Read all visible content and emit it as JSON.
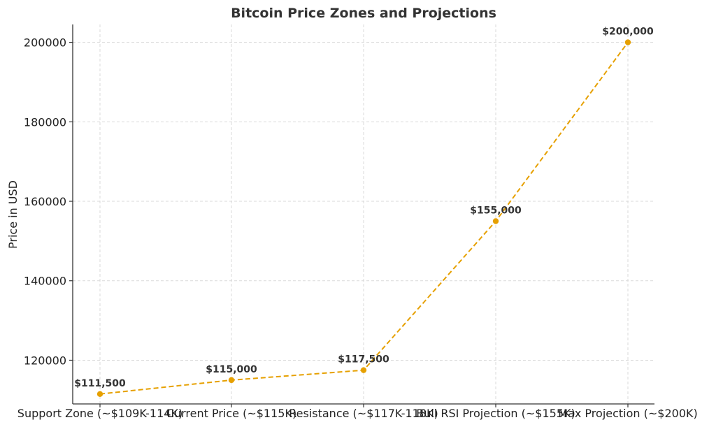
{
  "chart_data": {
    "type": "line",
    "title": "Bitcoin Price Zones and Projections",
    "xlabel": "",
    "ylabel": "Price in USD",
    "categories": [
      "Support Zone (~$109K-114K)",
      "Current Price (~$115K)",
      "Resistance (~$117K-118K)",
      "Bull RSI Projection (~$155K)",
      "Max Projection (~$200K)"
    ],
    "series": [
      {
        "values": [
          111500,
          115000,
          117500,
          155000,
          200000
        ],
        "color": "#E6A000",
        "line_style": "dashed",
        "marker": "circle"
      }
    ],
    "data_labels": [
      "$111,500",
      "$115,000",
      "$117,500",
      "$155,000",
      "$200,000"
    ],
    "yticks": [
      120000,
      140000,
      160000,
      180000,
      200000
    ],
    "ylim": [
      109000,
      204500
    ],
    "grid": true
  }
}
